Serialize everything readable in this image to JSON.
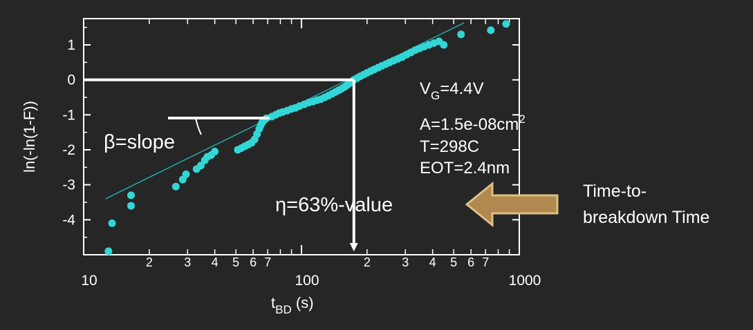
{
  "chart_data": {
    "type": "scatter",
    "xscale": "log",
    "xlabel_main": "t",
    "xlabel_sub": "BD",
    "xlabel_unit": " (s)",
    "ylabel": "ln(-ln(1-F))",
    "xlim": [
      10,
      1000
    ],
    "ylim": [
      -5,
      1.75
    ],
    "x_major_ticks": [
      {
        "value": 10,
        "label": "10"
      },
      {
        "value": 100,
        "label": "100"
      },
      {
        "value": 1000,
        "label": "1000"
      }
    ],
    "x_minor_ticks": [
      {
        "value": 20,
        "label": "2"
      },
      {
        "value": 30,
        "label": "3"
      },
      {
        "value": 40,
        "label": "4"
      },
      {
        "value": 50,
        "label": "5"
      },
      {
        "value": 60,
        "label": "6"
      },
      {
        "value": 70,
        "label": "7"
      },
      {
        "value": 200,
        "label": "2"
      },
      {
        "value": 300,
        "label": "3"
      },
      {
        "value": 400,
        "label": "4"
      },
      {
        "value": 500,
        "label": "5"
      },
      {
        "value": 600,
        "label": "6"
      },
      {
        "value": 700,
        "label": "7"
      }
    ],
    "y_ticks": [
      {
        "value": 1,
        "label": "1"
      },
      {
        "value": 0,
        "label": "0"
      },
      {
        "value": -1,
        "label": "-1"
      },
      {
        "value": -2,
        "label": "-2"
      },
      {
        "value": -3,
        "label": "-3"
      },
      {
        "value": -4,
        "label": "-4"
      }
    ],
    "series": [
      {
        "color": "#33d6d6",
        "points": [
          [
            13.0,
            -4.9
          ],
          [
            13.5,
            -4.1
          ],
          [
            16.5,
            -3.3
          ],
          [
            16.5,
            -3.6
          ],
          [
            26.5,
            -3.05
          ],
          [
            28.5,
            -2.85
          ],
          [
            29.5,
            -2.7
          ],
          [
            33,
            -2.55
          ],
          [
            34.5,
            -2.45
          ],
          [
            36,
            -2.3
          ],
          [
            37,
            -2.2
          ],
          [
            38.5,
            -2.15
          ],
          [
            40,
            -2.05
          ],
          [
            51,
            -2.0
          ],
          [
            53,
            -1.95
          ],
          [
            55,
            -1.9
          ],
          [
            57,
            -1.85
          ],
          [
            59,
            -1.8
          ],
          [
            61,
            -1.7
          ],
          [
            62.5,
            -1.55
          ],
          [
            64,
            -1.4
          ],
          [
            65,
            -1.3
          ],
          [
            66,
            -1.22
          ],
          [
            67.5,
            -1.15
          ],
          [
            69,
            -1.1
          ],
          [
            73,
            -1.05
          ],
          [
            76,
            -1.0
          ],
          [
            79,
            -0.95
          ],
          [
            82,
            -0.92
          ],
          [
            86,
            -0.88
          ],
          [
            90,
            -0.83
          ],
          [
            94,
            -0.8
          ],
          [
            98,
            -0.75
          ],
          [
            103,
            -0.7
          ],
          [
            108,
            -0.65
          ],
          [
            113,
            -0.62
          ],
          [
            118,
            -0.58
          ],
          [
            123,
            -0.55
          ],
          [
            128,
            -0.5
          ],
          [
            133,
            -0.45
          ],
          [
            138,
            -0.4
          ],
          [
            143,
            -0.35
          ],
          [
            148,
            -0.3
          ],
          [
            153,
            -0.25
          ],
          [
            158,
            -0.2
          ],
          [
            162,
            -0.15
          ],
          [
            166,
            -0.1
          ],
          [
            170,
            -0.05
          ],
          [
            174,
            0.0
          ],
          [
            180,
            0.05
          ],
          [
            186,
            0.1
          ],
          [
            193,
            0.15
          ],
          [
            200,
            0.2
          ],
          [
            208,
            0.25
          ],
          [
            216,
            0.3
          ],
          [
            225,
            0.35
          ],
          [
            234,
            0.4
          ],
          [
            244,
            0.45
          ],
          [
            254,
            0.5
          ],
          [
            265,
            0.55
          ],
          [
            277,
            0.6
          ],
          [
            290,
            0.65
          ],
          [
            304,
            0.72
          ],
          [
            318,
            0.78
          ],
          [
            333,
            0.85
          ],
          [
            349,
            0.9
          ],
          [
            366,
            0.95
          ],
          [
            385,
            1.0
          ],
          [
            405,
            1.05
          ],
          [
            428,
            1.1
          ],
          [
            450,
            1.0
          ],
          [
            540,
            1.3
          ],
          [
            740,
            1.42
          ],
          [
            870,
            1.6
          ]
        ]
      }
    ],
    "fit_line": {
      "x": [
        12.6,
        1000
      ],
      "y": [
        -3.4,
        1.63
      ],
      "color": "#22aaaa"
    },
    "annotations": {
      "vg_main": "V",
      "vg_sub": "G",
      "vg_rest": "=4.4V",
      "area_main": "A=1.5e-08cm",
      "area_sup": "2",
      "temperature": "T=298C",
      "eot": "EOT=2.4nm",
      "beta": "β=slope",
      "eta": "η=63%-value"
    },
    "side_note": {
      "line1": "Time-to-",
      "line2": "breakdown Time"
    },
    "colors": {
      "background": "#262626",
      "axes": "#ffffff",
      "points": "#33d6d6",
      "arrow_fill": "#b08850",
      "arrow_stroke": "#e0c080"
    }
  }
}
